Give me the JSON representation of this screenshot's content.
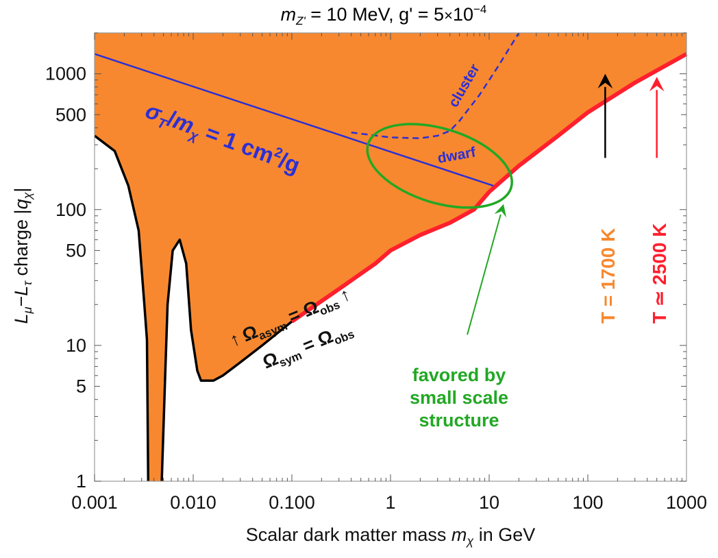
{
  "chart_data": {
    "type": "line",
    "title": {
      "m_symbol": "m",
      "m_sub": "Z'",
      "rest": " = 10 MeV, g' = 5",
      "times": "×",
      "base": "10",
      "exp": "−4"
    },
    "xlabel": {
      "prefix": "Scalar dark matter mass ",
      "m": "m",
      "sub": "χ",
      "suffix": " in GeV"
    },
    "ylabel": {
      "l1": "L",
      "l1_sub": "μ",
      "dash": "−",
      "l2": "L",
      "l2_sub": "τ",
      "rest": " charge |",
      "q": "q",
      "q_sub": "χ",
      "close": "|"
    },
    "x_scale": "log",
    "y_scale": "log",
    "xlim": [
      0.001,
      1000
    ],
    "ylim": [
      1,
      2000
    ],
    "x_ticks": [
      "0.001",
      "0.010",
      "0.100",
      "1",
      "10",
      "100",
      "1000"
    ],
    "y_ticks": [
      "1",
      "5",
      "10",
      "50",
      "100",
      "500",
      "1000"
    ],
    "colors": {
      "excluded_region": "#f7882f",
      "black_curve": "#000000",
      "red_curve": "#ff1f2d",
      "blue_line": "#2b2fd6",
      "green_ellipse": "#22a824",
      "orange_text": "#f7882f",
      "frame": "#999999"
    },
    "series": [
      {
        "name": "Ω_sym = Ω_obs",
        "points": [
          [
            0.001,
            350
          ],
          [
            0.0016,
            270
          ],
          [
            0.0022,
            150
          ],
          [
            0.0028,
            70
          ],
          [
            0.0032,
            20
          ],
          [
            0.0034,
            11
          ],
          [
            0.0035,
            1.0
          ]
        ]
      },
      {
        "name": "Ω_sym = Ω_obs (segment 2)",
        "points": [
          [
            0.0048,
            1.0
          ],
          [
            0.0052,
            6
          ],
          [
            0.0055,
            20
          ],
          [
            0.0062,
            50
          ],
          [
            0.0073,
            60
          ],
          [
            0.0085,
            40
          ],
          [
            0.0095,
            13
          ],
          [
            0.011,
            6.5
          ],
          [
            0.012,
            5.5
          ],
          [
            0.016,
            5.5
          ],
          [
            0.02,
            6
          ],
          [
            0.03,
            7.5
          ],
          [
            0.05,
            10
          ],
          [
            0.1,
            15
          ]
        ]
      },
      {
        "name": "Ω_asym = Ω_obs",
        "points": [
          [
            0.1,
            15
          ],
          [
            0.3,
            26
          ],
          [
            0.7,
            40
          ],
          [
            1,
            50
          ],
          [
            2,
            65
          ],
          [
            4,
            80
          ],
          [
            7,
            100
          ],
          [
            10,
            135
          ],
          [
            20,
            210
          ],
          [
            50,
            350
          ],
          [
            100,
            520
          ],
          [
            300,
            860
          ],
          [
            1000,
            1400
          ]
        ]
      },
      {
        "name": "σ_T/m_χ = 1 cm²/g",
        "points": [
          [
            0.001,
            1400
          ],
          [
            11,
            150
          ]
        ]
      },
      {
        "name": "cluster",
        "points": [
          [
            0.4,
            370
          ],
          [
            1,
            340
          ],
          [
            2,
            335
          ],
          [
            3,
            350
          ],
          [
            4,
            380
          ],
          [
            5,
            450
          ],
          [
            8,
            700
          ],
          [
            12,
            1100
          ],
          [
            20,
            2000
          ]
        ]
      }
    ],
    "excluded_region": {
      "upper": [
        [
          0.001,
          2000
        ],
        [
          1000,
          2000
        ]
      ],
      "lower": [
        [
          0.001,
          350
        ],
        [
          0.0016,
          270
        ],
        [
          0.0022,
          150
        ],
        [
          0.0028,
          70
        ],
        [
          0.0032,
          20
        ],
        [
          0.0034,
          11
        ],
        [
          0.0035,
          1.0
        ],
        [
          0.0048,
          1.0
        ],
        [
          0.0052,
          6
        ],
        [
          0.0055,
          20
        ],
        [
          0.0062,
          50
        ],
        [
          0.0073,
          60
        ],
        [
          0.0085,
          40
        ],
        [
          0.0095,
          13
        ],
        [
          0.011,
          6.5
        ],
        [
          0.012,
          5.5
        ],
        [
          0.016,
          5.5
        ],
        [
          0.02,
          6
        ],
        [
          0.03,
          7.5
        ],
        [
          0.05,
          10
        ],
        [
          0.1,
          15
        ],
        [
          0.3,
          26
        ],
        [
          0.7,
          40
        ],
        [
          1,
          50
        ],
        [
          2,
          65
        ],
        [
          4,
          80
        ],
        [
          7,
          100
        ],
        [
          10,
          135
        ],
        [
          20,
          210
        ],
        [
          50,
          350
        ],
        [
          100,
          520
        ],
        [
          300,
          860
        ],
        [
          1000,
          1400
        ]
      ]
    },
    "favored_ellipse": {
      "center": [
        3.2,
        260
      ],
      "x_range": [
        0.55,
        18
      ],
      "y_range": [
        105,
        420
      ]
    },
    "arrows": [
      {
        "name": "T = 1700 K",
        "x": 150,
        "y_from": 240,
        "y_to": 1000
      },
      {
        "name": "T ≃ 2500 K",
        "x": 500,
        "y_from": 240,
        "y_to": 950
      },
      {
        "name": "favored pointer",
        "from": [
          6,
          12
        ],
        "to": [
          14,
          110
        ]
      }
    ],
    "annotations": {
      "sigma_label": {
        "sigma": "σ",
        "sigma_sub": "T",
        "slash": "/",
        "m": "m",
        "m_sub": "χ",
        "eq": " = 1 cm",
        "sup": "2",
        "unit": "/g"
      },
      "dwarf": "dwarf",
      "cluster": "cluster",
      "omega_asym": {
        "arrow": "↑",
        "omega": "Ω",
        "sub": "asym",
        "eq": " = ",
        "omega2": "Ω",
        "sub2": "obs",
        "arrow2": "↑"
      },
      "omega_sym": {
        "omega": "Ω",
        "sub": "sym",
        "eq": " = ",
        "omega2": "Ω",
        "sub2": "obs"
      },
      "favored": [
        "favored by",
        "small scale",
        "structure"
      ],
      "temp_1700": "T = 1700 K",
      "temp_2500": "T ≃ 2500 K"
    }
  }
}
